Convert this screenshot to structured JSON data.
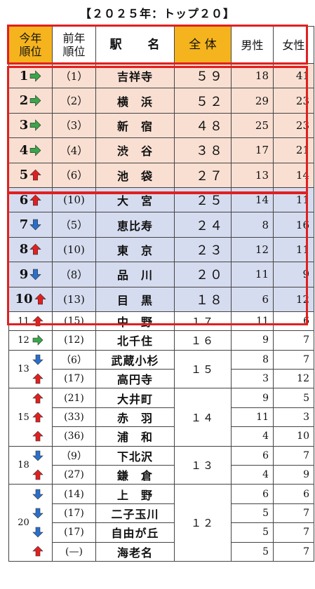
{
  "title": "【２０２５年：トップ２０】",
  "headers": {
    "rank_line1": "今年",
    "rank_line2": "順位",
    "prev_line1": "前年",
    "prev_line2": "順位",
    "station": "駅　　名",
    "total": "全 体",
    "male": "男性",
    "female": "女性"
  },
  "colors": {
    "gold": "#f5b41d",
    "pink": "#f9dfd2",
    "lavender": "#d6dcef",
    "red": "#e02020",
    "arrow_right": "#3aa64a",
    "arrow_up": "#e02020",
    "arrow_down": "#2a6fc9"
  },
  "top5": [
    {
      "rank": "1",
      "arrow": "right",
      "prev": "（1）",
      "name": "吉祥寺",
      "total": "５９",
      "male": "18",
      "female": "41"
    },
    {
      "rank": "2",
      "arrow": "right",
      "prev": "（2）",
      "name": "横　浜",
      "total": "５２",
      "male": "29",
      "female": "23"
    },
    {
      "rank": "3",
      "arrow": "right",
      "prev": "（3）",
      "name": "新　宿",
      "total": "４８",
      "male": "25",
      "female": "23"
    },
    {
      "rank": "4",
      "arrow": "right",
      "prev": "（4）",
      "name": "渋　谷",
      "total": "３８",
      "male": "17",
      "female": "21"
    },
    {
      "rank": "5",
      "arrow": "up",
      "prev": "（6）",
      "name": "池　袋",
      "total": "２７",
      "male": "13",
      "female": "14"
    }
  ],
  "top10": [
    {
      "rank": "6",
      "arrow": "up",
      "prev": "(10)",
      "name": "大　宮",
      "total": "２５",
      "male": "14",
      "female": "11"
    },
    {
      "rank": "7",
      "arrow": "down",
      "prev": "（5）",
      "name": "恵比寿",
      "total": "２４",
      "male": "8",
      "female": "16"
    },
    {
      "rank": "8",
      "arrow": "up",
      "prev": "(10)",
      "name": "東　京",
      "total": "２３",
      "male": "12",
      "female": "11"
    },
    {
      "rank": "9",
      "arrow": "down",
      "prev": "（8）",
      "name": "品　川",
      "total": "２０",
      "male": "11",
      "female": "9"
    },
    {
      "rank": "10",
      "arrow": "up",
      "prev": "(13)",
      "name": "目　黒",
      "total": "１８",
      "male": "6",
      "female": "12"
    }
  ],
  "rest": [
    {
      "rank": "11",
      "arrows": [
        "up"
      ],
      "rows": [
        {
          "prev": "(15)",
          "name": "中　野",
          "male": "11",
          "female": "6"
        }
      ],
      "total": "１７"
    },
    {
      "rank": "12",
      "arrows": [
        "right"
      ],
      "rows": [
        {
          "prev": "(12)",
          "name": "北千住",
          "male": "9",
          "female": "7"
        }
      ],
      "total": "１６"
    },
    {
      "rank": "13",
      "arrows": [
        "down",
        "up"
      ],
      "rows": [
        {
          "prev": "（6）",
          "name": "武蔵小杉",
          "male": "8",
          "female": "7"
        },
        {
          "prev": "(17)",
          "name": "高円寺",
          "male": "3",
          "female": "12"
        }
      ],
      "total": "１５"
    },
    {
      "rank": "15",
      "arrows": [
        "up",
        "up",
        "up"
      ],
      "rows": [
        {
          "prev": "(21)",
          "name": "大井町",
          "male": "9",
          "female": "5"
        },
        {
          "prev": "(33)",
          "name": "赤　羽",
          "male": "11",
          "female": "3"
        },
        {
          "prev": "(36)",
          "name": "浦　和",
          "male": "4",
          "female": "10"
        }
      ],
      "total": "１４"
    },
    {
      "rank": "18",
      "arrows": [
        "down",
        "up"
      ],
      "rows": [
        {
          "prev": "（9）",
          "name": "下北沢",
          "male": "6",
          "female": "7"
        },
        {
          "prev": "(27)",
          "name": "鎌　倉",
          "male": "4",
          "female": "9"
        }
      ],
      "total": "１３"
    },
    {
      "rank": "20",
      "arrows": [
        "down",
        "down",
        "down",
        "up"
      ],
      "rows": [
        {
          "prev": "(14)",
          "name": "上　野",
          "male": "6",
          "female": "6"
        },
        {
          "prev": "(17)",
          "name": "二子玉川",
          "male": "5",
          "female": "7"
        },
        {
          "prev": "(17)",
          "name": "自由が丘",
          "male": "5",
          "female": "7"
        },
        {
          "prev": "(—)",
          "name": "海老名",
          "male": "5",
          "female": "7"
        }
      ],
      "total": "１２"
    }
  ]
}
